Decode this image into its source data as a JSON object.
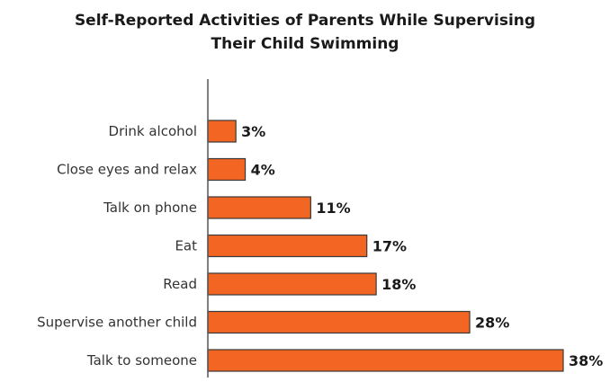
{
  "chart_data": {
    "type": "bar",
    "orientation": "horizontal",
    "title": [
      "Self-Reported Activities of Parents While Supervising",
      "Their Child Swimming"
    ],
    "categories": [
      "Drink alcohol",
      "Close eyes and relax",
      "Talk on phone",
      "Eat",
      "Read",
      "Supervise another child",
      "Talk to someone"
    ],
    "values": [
      3,
      4,
      11,
      17,
      18,
      28,
      38
    ],
    "value_labels": [
      "3%",
      "4%",
      "11%",
      "17%",
      "18%",
      "28%",
      "38%"
    ],
    "unit": "%",
    "xlim": [
      0,
      38
    ],
    "grid": false,
    "legend": "none",
    "bar_color": "#f26522",
    "bar_edge_color": "#3a3a3a",
    "axis_color": "#555555"
  }
}
